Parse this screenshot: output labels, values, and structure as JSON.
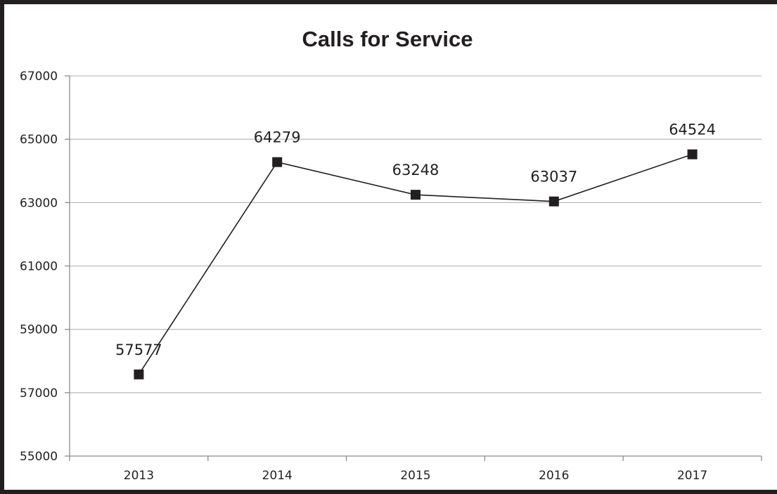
{
  "chart_data": {
    "type": "line",
    "title": "Calls for Service",
    "xlabel": "",
    "ylabel": "",
    "categories": [
      "2013",
      "2014",
      "2015",
      "2016",
      "2017"
    ],
    "values": [
      57577,
      64279,
      63248,
      63037,
      64524
    ],
    "data_labels": [
      "57577",
      "64279",
      "63248",
      "63037",
      "64524"
    ],
    "ylim": [
      55000,
      67000
    ],
    "yticks": [
      "55000",
      "57000",
      "59000",
      "61000",
      "63000",
      "65000",
      "67000"
    ],
    "grid": true,
    "legend": "none",
    "line_color": "#231f20",
    "marker": "square",
    "marker_color": "#231f20",
    "grid_color": "#bfbfbf"
  }
}
